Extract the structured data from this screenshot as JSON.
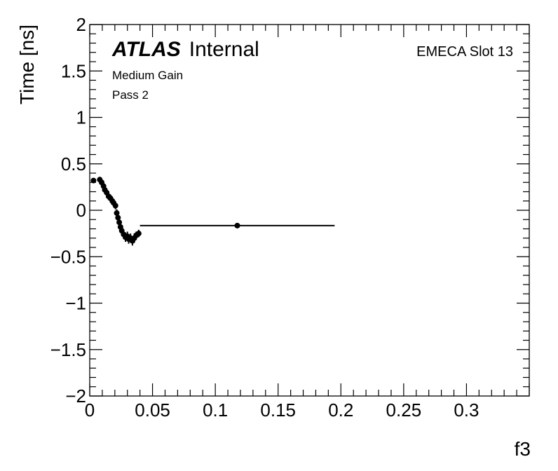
{
  "chart_data": {
    "type": "scatter",
    "xlabel": "f3",
    "ylabel": "Time [ns]",
    "xlim": [
      0,
      0.35
    ],
    "ylim": [
      -2,
      2
    ],
    "x_ticks": [
      0,
      0.05,
      0.1,
      0.15,
      0.2,
      0.25,
      0.3
    ],
    "x_tick_labels": [
      "0",
      "0.05",
      "0.1",
      "0.15",
      "0.2",
      "0.25",
      "0.3"
    ],
    "y_ticks": [
      -2,
      -1.5,
      -1,
      -0.5,
      0,
      0.5,
      1,
      1.5,
      2
    ],
    "y_tick_labels": [
      "−2",
      "−1.5",
      "−1",
      "−0.5",
      "0",
      "0.5",
      "1",
      "1.5",
      "2"
    ],
    "grid": false,
    "labels": {
      "atlas": "ATLAS",
      "internal": "Internal",
      "gain": "Medium Gain",
      "pass": "Pass 2",
      "slot": "EMECA Slot 13"
    },
    "points": [
      {
        "x": 0.003,
        "y": 0.32,
        "xerr": 0.002,
        "yerr": 0.02
      },
      {
        "x": 0.008,
        "y": 0.33,
        "xerr": 0.0005,
        "yerr": 0.03
      },
      {
        "x": 0.0095,
        "y": 0.3,
        "xerr": 0.0005,
        "yerr": 0.03
      },
      {
        "x": 0.011,
        "y": 0.26,
        "xerr": 0.0005,
        "yerr": 0.03
      },
      {
        "x": 0.012,
        "y": 0.22,
        "xerr": 0.0005,
        "yerr": 0.04
      },
      {
        "x": 0.0135,
        "y": 0.19,
        "xerr": 0.0005,
        "yerr": 0.04
      },
      {
        "x": 0.015,
        "y": 0.15,
        "xerr": 0.0005,
        "yerr": 0.04
      },
      {
        "x": 0.0165,
        "y": 0.13,
        "xerr": 0.0005,
        "yerr": 0.04
      },
      {
        "x": 0.018,
        "y": 0.1,
        "xerr": 0.0005,
        "yerr": 0.04
      },
      {
        "x": 0.019,
        "y": 0.08,
        "xerr": 0.0005,
        "yerr": 0.04
      },
      {
        "x": 0.0205,
        "y": 0.05,
        "xerr": 0.0005,
        "yerr": 0.04
      },
      {
        "x": 0.0215,
        "y": -0.03,
        "xerr": 0.0005,
        "yerr": 0.04
      },
      {
        "x": 0.0225,
        "y": -0.08,
        "xerr": 0.0005,
        "yerr": 0.04
      },
      {
        "x": 0.0235,
        "y": -0.13,
        "xerr": 0.0005,
        "yerr": 0.05
      },
      {
        "x": 0.0245,
        "y": -0.18,
        "xerr": 0.0005,
        "yerr": 0.05
      },
      {
        "x": 0.0255,
        "y": -0.22,
        "xerr": 0.0005,
        "yerr": 0.05
      },
      {
        "x": 0.027,
        "y": -0.26,
        "xerr": 0.0005,
        "yerr": 0.05
      },
      {
        "x": 0.0285,
        "y": -0.29,
        "xerr": 0.0005,
        "yerr": 0.05
      },
      {
        "x": 0.03,
        "y": -0.28,
        "xerr": 0.0005,
        "yerr": 0.05
      },
      {
        "x": 0.031,
        "y": -0.31,
        "xerr": 0.0005,
        "yerr": 0.05
      },
      {
        "x": 0.0325,
        "y": -0.3,
        "xerr": 0.0005,
        "yerr": 0.05
      },
      {
        "x": 0.034,
        "y": -0.33,
        "xerr": 0.0005,
        "yerr": 0.05
      },
      {
        "x": 0.0355,
        "y": -0.3,
        "xerr": 0.0005,
        "yerr": 0.05
      },
      {
        "x": 0.037,
        "y": -0.27,
        "xerr": 0.0005,
        "yerr": 0.04
      },
      {
        "x": 0.039,
        "y": -0.25,
        "xerr": 0.0005,
        "yerr": 0.04
      },
      {
        "x": 0.1175,
        "y": -0.165,
        "xerr": 0.0775,
        "yerr": 0.005
      }
    ]
  }
}
